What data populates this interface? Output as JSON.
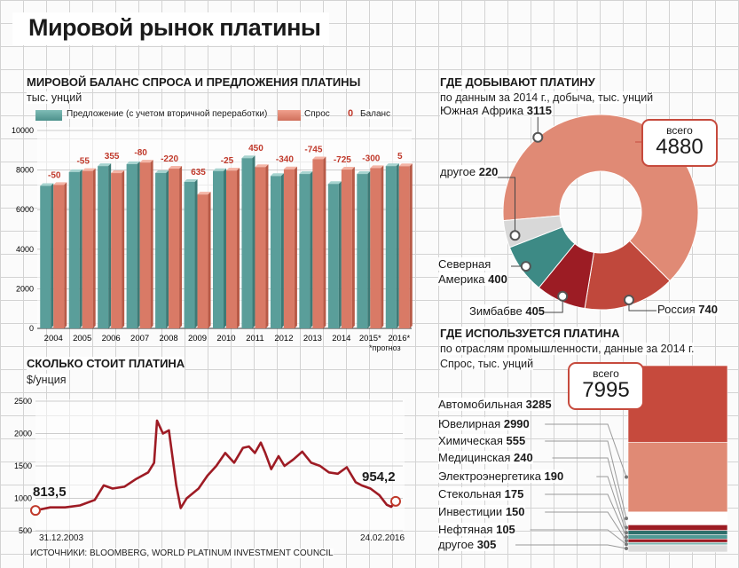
{
  "title": "Мировой рынок платины",
  "balance": {
    "title": "МИРОВОЙ БАЛАНС СПРОСА И ПРЕДЛОЖЕНИЯ ПЛАТИНЫ",
    "unit": "тыс. унций",
    "legend": {
      "supply": "Предложение (с учетом вторичной переработки)",
      "demand": "Спрос",
      "balance_mark": "0",
      "balance": "Баланс"
    },
    "forecast_note": "*прогноз",
    "colors": {
      "supply": "#5a9e9a",
      "demand": "#d97a66",
      "balance": "#c0392b"
    }
  },
  "price": {
    "title": "СКОЛЬКО СТОИТ ПЛАТИНА",
    "unit": "$/унция",
    "start_date": "31.12.2003",
    "end_date": "24.02.2016",
    "start_value": "813,5",
    "end_value": "954,2",
    "line_color": "#9e1b24"
  },
  "mining": {
    "title": "ГДЕ ДОБЫВАЮТ ПЛАТИНУ",
    "subtitle": "по данным за 2014 г., добыча, тыс. унций",
    "total_label": "всего",
    "total_value": "4880"
  },
  "usage": {
    "title": "ГДЕ ИСПОЛЬЗУЕТСЯ ПЛАТИНА",
    "subtitle1": "по отраслям промышленности, данные за 2014 г.",
    "subtitle2": "Спрос, тыс. унций",
    "total_label": "всего",
    "total_value": "7995"
  },
  "sources": "ИСТОЧНИКИ: BLOOMBERG, WORLD PLATINUM INVESTMENT COUNCIL",
  "chart_data": [
    {
      "type": "bar",
      "title": "МИРОВОЙ БАЛАНС СПРОСА И ПРЕДЛОЖЕНИЯ ПЛАТИНЫ",
      "ylabel": "тыс. унций",
      "ylim": [
        0,
        10000
      ],
      "yticks": [
        "0",
        "2000",
        "4000",
        "6000",
        "8000",
        "10000"
      ],
      "categories": [
        "2004",
        "2005",
        "2006",
        "2007",
        "2008",
        "2009",
        "2010",
        "2011",
        "2012",
        "2013",
        "2014",
        "2015*",
        "2016*"
      ],
      "series": [
        {
          "name": "Предложение (с учетом вторичной переработки)",
          "values": [
            7200,
            7900,
            8200,
            8300,
            7850,
            7400,
            7950,
            8600,
            7700,
            7800,
            7300,
            7800,
            8200
          ]
        },
        {
          "name": "Спрос",
          "values": [
            7250,
            7955,
            7845,
            8380,
            8070,
            6765,
            7975,
            8150,
            8040,
            8545,
            8025,
            8100,
            8195
          ]
        },
        {
          "name": "Баланс",
          "values": [
            -50,
            -55,
            355,
            -80,
            -220,
            635,
            -25,
            450,
            -340,
            -745,
            -725,
            -300,
            5
          ]
        }
      ],
      "balance_labels": [
        "-50",
        "-55",
        "355",
        "-80",
        "-220",
        "635",
        "-25",
        "450",
        "-340",
        "-745",
        "-725",
        "-300",
        "5"
      ]
    },
    {
      "type": "line",
      "title": "СКОЛЬКО СТОИТ ПЛАТИНА",
      "ylabel": "$/унция",
      "ylim": [
        500,
        2500
      ],
      "yticks": [
        "500",
        "1000",
        "1500",
        "2000",
        "2500"
      ],
      "x": [
        2004.0,
        2004.5,
        2005.0,
        2005.5,
        2006.0,
        2006.3,
        2006.6,
        2007.0,
        2007.4,
        2007.8,
        2008.0,
        2008.1,
        2008.3,
        2008.5,
        2008.75,
        2008.9,
        2009.1,
        2009.5,
        2009.8,
        2010.1,
        2010.4,
        2010.7,
        2011.0,
        2011.2,
        2011.4,
        2011.6,
        2011.75,
        2011.95,
        2012.2,
        2012.4,
        2012.7,
        2013.0,
        2013.3,
        2013.6,
        2013.9,
        2014.2,
        2014.5,
        2014.8,
        2015.0,
        2015.3,
        2015.6,
        2015.85,
        2016.0,
        2016.15
      ],
      "y": [
        813.5,
        860,
        860,
        890,
        975,
        1200,
        1150,
        1180,
        1300,
        1400,
        1550,
        2200,
        2000,
        2050,
        1200,
        850,
        1000,
        1150,
        1350,
        1500,
        1700,
        1550,
        1780,
        1800,
        1700,
        1860,
        1700,
        1450,
        1650,
        1500,
        1600,
        1720,
        1550,
        1500,
        1400,
        1380,
        1480,
        1250,
        1200,
        1150,
        1050,
        900,
        870,
        954.2
      ],
      "xlabels": [
        "31.12.2003",
        "24.02.2016"
      ],
      "annotations": [
        "813,5",
        "954,2"
      ]
    },
    {
      "type": "pie",
      "title": "ГДЕ ДОБЫВАЮТ ПЛАТИНУ",
      "total": 4880,
      "slices": [
        {
          "label": "Южная Африка",
          "value": 3115,
          "color": "#e08a75"
        },
        {
          "label": "Россия",
          "value": 740,
          "color": "#c0483c"
        },
        {
          "label": "Зимбабве",
          "value": 405,
          "color": "#9c1c24"
        },
        {
          "label": "Северная Америка",
          "value": 400,
          "color": "#3d8a85"
        },
        {
          "label": "другое",
          "value": 220,
          "color": "#d8d8d8"
        }
      ]
    },
    {
      "type": "bar",
      "title": "ГДЕ ИСПОЛЬЗУЕТСЯ ПЛАТИНА",
      "total": 7995,
      "stack": [
        {
          "label": "Автомобильная",
          "value": 3285,
          "color": "#c64a3d"
        },
        {
          "label": "Ювелирная",
          "value": 2990,
          "color": "#e08a75"
        },
        {
          "label": "Химическая",
          "value": 555,
          "color": "#ffffff"
        },
        {
          "label": "Медицинская",
          "value": 240,
          "color": "#9c1c24"
        },
        {
          "label": "Электроэнергетика",
          "value": 190,
          "color": "#2e6f6b"
        },
        {
          "label": "Стекольная",
          "value": 175,
          "color": "#4f9a95"
        },
        {
          "label": "Инвестиции",
          "value": 150,
          "color": "#9c1c24"
        },
        {
          "label": "Нефтяная",
          "value": 105,
          "color": "#7fb8b3"
        },
        {
          "label": "другое",
          "value": 305,
          "color": "#dcdcdc"
        }
      ]
    }
  ]
}
